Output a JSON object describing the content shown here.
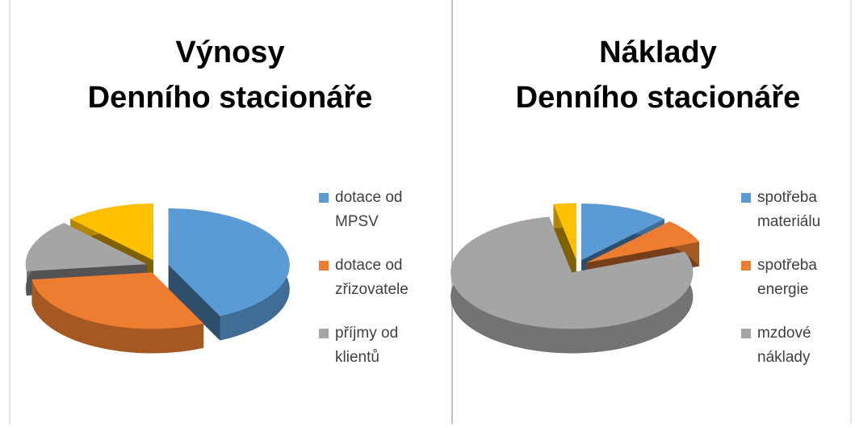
{
  "chart_data": [
    {
      "type": "pie",
      "title": "Výnosy Denního stacionáře",
      "categories": [
        "dotace od MPSV",
        "dotace od zřizovatele",
        "příjmy od klientů",
        null
      ],
      "values": [
        43,
        30,
        15,
        12
      ],
      "colors": [
        "#5b9bd5",
        "#ed7d31",
        "#a5a5a5",
        "#ffc000"
      ]
    },
    {
      "type": "pie",
      "title": "Náklady Denního stacionáře",
      "categories": [
        "spotřeba materiálu",
        "spotřeba energie",
        "mzdové náklady",
        null
      ],
      "values": [
        12,
        7,
        78,
        3
      ],
      "colors": [
        "#5b9bd5",
        "#ed7d31",
        "#a5a5a5",
        "#ffc000"
      ]
    }
  ]
}
